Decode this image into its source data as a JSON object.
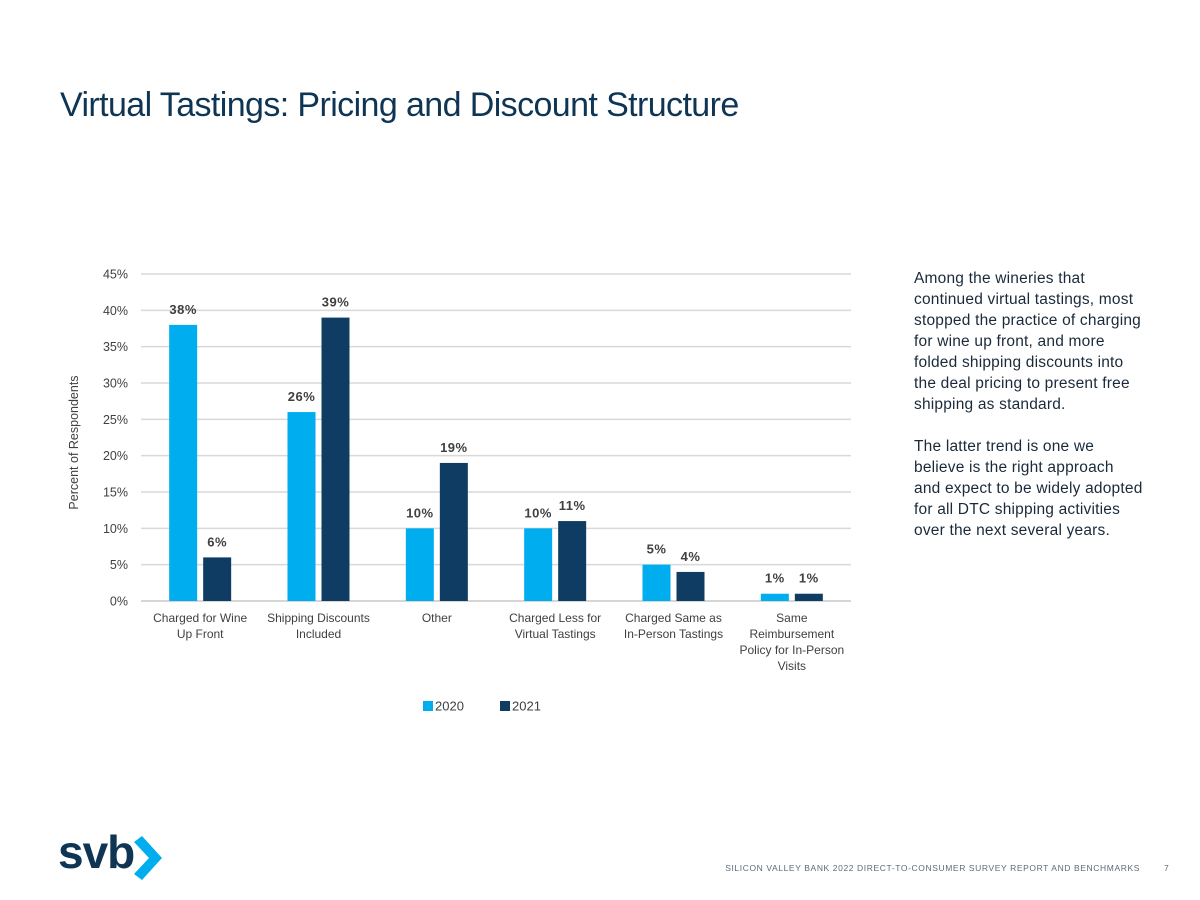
{
  "page": {
    "title": "Virtual Tastings: Pricing and Discount Structure",
    "body_paragraphs": [
      "Among the wineries that continued virtual tastings, most stopped the practice of charging for wine up front, and more folded shipping discounts into the deal pricing to present free shipping as standard.",
      "The latter trend is one we believe is the right approach and expect to be widely adopted for all DTC shipping activities over the next several years."
    ],
    "logo_text": "svb",
    "logo_icon": "chevron-right-icon",
    "footer_text": "SILICON VALLEY BANK 2022 DIRECT-TO-CONSUMER SURVEY REPORT AND BENCHMARKS",
    "page_number": "7"
  },
  "chart_data": {
    "type": "bar",
    "ylabel": "Percent of Respondents",
    "xlabel": "",
    "ylim": [
      0,
      45
    ],
    "yticks": [
      0,
      5,
      10,
      15,
      20,
      25,
      30,
      35,
      40,
      45
    ],
    "ytick_labels": [
      "0%",
      "5%",
      "10%",
      "15%",
      "20%",
      "25%",
      "30%",
      "35%",
      "40%",
      "45%"
    ],
    "grid": true,
    "legend_position": "bottom",
    "categories": [
      [
        "Charged for Wine",
        "Up Front"
      ],
      [
        "Shipping Discounts",
        "Included"
      ],
      [
        "Other"
      ],
      [
        "Charged Less for",
        "Virtual Tastings"
      ],
      [
        "Charged Same as",
        "In-Person Tastings"
      ],
      [
        "Same",
        "Reimbursement",
        "Policy for In-Person",
        "Visits"
      ]
    ],
    "series": [
      {
        "name": "2020",
        "color": "#00aeef",
        "values": [
          38,
          26,
          10,
          10,
          5,
          1
        ],
        "labels": [
          "38%",
          "26%",
          "10%",
          "10%",
          "5%",
          "1%"
        ]
      },
      {
        "name": "2021",
        "color": "#0f3c62",
        "values": [
          6,
          39,
          19,
          11,
          4,
          1
        ],
        "labels": [
          "6%",
          "39%",
          "19%",
          "11%",
          "4%",
          "1%"
        ]
      }
    ]
  }
}
